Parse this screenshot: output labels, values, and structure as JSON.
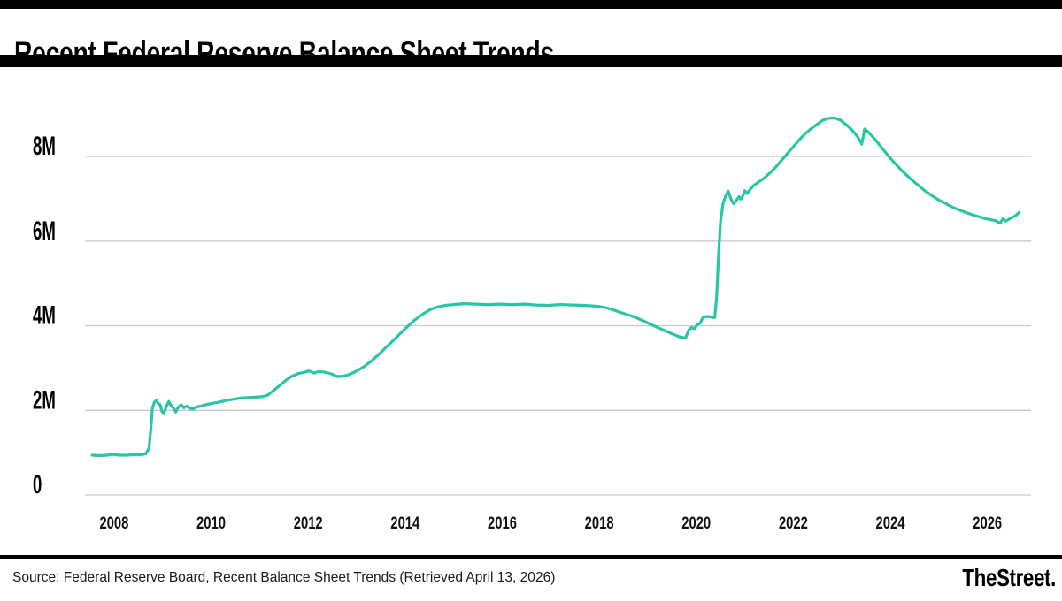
{
  "header": {
    "title": "Recent Federal Reserve Balance Sheet Trends"
  },
  "footer": {
    "source": "Source: Federal Reserve Board, Recent Balance Sheet Trends (Retrieved April 13, 2026)",
    "brand": "TheStreet."
  },
  "colors": {
    "line": "#28C6A4",
    "gridline": "#C9C9C9",
    "axis_text": "#111111",
    "bars": "#000000"
  },
  "chart_data": {
    "type": "line",
    "title": "Recent Federal Reserve Balance Sheet Trends",
    "xlabel": "",
    "ylabel": "",
    "grid": "horizontal",
    "legend": "none",
    "xlim": [
      2007.4,
      2026.9
    ],
    "ylim": [
      0,
      9.4
    ],
    "yticks": [
      {
        "v": 0,
        "label": "0"
      },
      {
        "v": 2,
        "label": "2M"
      },
      {
        "v": 4,
        "label": "4M"
      },
      {
        "v": 6,
        "label": "6M"
      },
      {
        "v": 8,
        "label": "8M"
      }
    ],
    "xticks": [
      {
        "v": 2008,
        "label": "2008"
      },
      {
        "v": 2010,
        "label": "2010"
      },
      {
        "v": 2012,
        "label": "2012"
      },
      {
        "v": 2014,
        "label": "2014"
      },
      {
        "v": 2016,
        "label": "2016"
      },
      {
        "v": 2018,
        "label": "2018"
      },
      {
        "v": 2020,
        "label": "2020"
      },
      {
        "v": 2022,
        "label": "2022"
      },
      {
        "v": 2024,
        "label": "2024"
      },
      {
        "v": 2026,
        "label": "2026"
      }
    ],
    "points": [
      [
        2007.55,
        0.94
      ],
      [
        2007.7,
        0.93
      ],
      [
        2007.85,
        0.94
      ],
      [
        2008.0,
        0.96
      ],
      [
        2008.1,
        0.94
      ],
      [
        2008.25,
        0.94
      ],
      [
        2008.4,
        0.95
      ],
      [
        2008.55,
        0.95
      ],
      [
        2008.65,
        0.97
      ],
      [
        2008.72,
        1.1
      ],
      [
        2008.76,
        1.6
      ],
      [
        2008.79,
        2.05
      ],
      [
        2008.83,
        2.19
      ],
      [
        2008.87,
        2.24
      ],
      [
        2008.91,
        2.16
      ],
      [
        2008.95,
        2.13
      ],
      [
        2008.99,
        1.96
      ],
      [
        2009.03,
        1.94
      ],
      [
        2009.08,
        2.1
      ],
      [
        2009.13,
        2.21
      ],
      [
        2009.18,
        2.1
      ],
      [
        2009.23,
        2.05
      ],
      [
        2009.27,
        1.96
      ],
      [
        2009.32,
        2.07
      ],
      [
        2009.38,
        2.13
      ],
      [
        2009.44,
        2.06
      ],
      [
        2009.5,
        2.1
      ],
      [
        2009.56,
        2.05
      ],
      [
        2009.63,
        2.03
      ],
      [
        2009.7,
        2.08
      ],
      [
        2009.78,
        2.1
      ],
      [
        2009.88,
        2.13
      ],
      [
        2010.0,
        2.16
      ],
      [
        2010.15,
        2.19
      ],
      [
        2010.3,
        2.23
      ],
      [
        2010.45,
        2.26
      ],
      [
        2010.6,
        2.29
      ],
      [
        2010.75,
        2.3
      ],
      [
        2010.9,
        2.31
      ],
      [
        2011.05,
        2.32
      ],
      [
        2011.17,
        2.36
      ],
      [
        2011.3,
        2.48
      ],
      [
        2011.43,
        2.6
      ],
      [
        2011.55,
        2.72
      ],
      [
        2011.67,
        2.81
      ],
      [
        2011.8,
        2.87
      ],
      [
        2011.92,
        2.9
      ],
      [
        2012.02,
        2.93
      ],
      [
        2012.12,
        2.88
      ],
      [
        2012.22,
        2.92
      ],
      [
        2012.35,
        2.9
      ],
      [
        2012.48,
        2.86
      ],
      [
        2012.6,
        2.8
      ],
      [
        2012.73,
        2.81
      ],
      [
        2012.86,
        2.85
      ],
      [
        2013.0,
        2.93
      ],
      [
        2013.15,
        3.03
      ],
      [
        2013.32,
        3.18
      ],
      [
        2013.5,
        3.37
      ],
      [
        2013.68,
        3.57
      ],
      [
        2013.86,
        3.77
      ],
      [
        2014.02,
        3.95
      ],
      [
        2014.18,
        4.12
      ],
      [
        2014.34,
        4.26
      ],
      [
        2014.5,
        4.37
      ],
      [
        2014.66,
        4.44
      ],
      [
        2014.83,
        4.48
      ],
      [
        2015.0,
        4.5
      ],
      [
        2015.2,
        4.52
      ],
      [
        2015.45,
        4.51
      ],
      [
        2015.7,
        4.5
      ],
      [
        2015.95,
        4.51
      ],
      [
        2016.2,
        4.5
      ],
      [
        2016.45,
        4.51
      ],
      [
        2016.7,
        4.49
      ],
      [
        2016.95,
        4.48
      ],
      [
        2017.2,
        4.5
      ],
      [
        2017.45,
        4.49
      ],
      [
        2017.7,
        4.48
      ],
      [
        2017.95,
        4.46
      ],
      [
        2018.12,
        4.43
      ],
      [
        2018.3,
        4.37
      ],
      [
        2018.5,
        4.29
      ],
      [
        2018.7,
        4.22
      ],
      [
        2018.9,
        4.12
      ],
      [
        2019.1,
        4.01
      ],
      [
        2019.3,
        3.91
      ],
      [
        2019.5,
        3.81
      ],
      [
        2019.65,
        3.74
      ],
      [
        2019.78,
        3.71
      ],
      [
        2019.84,
        3.89
      ],
      [
        2019.9,
        3.96
      ],
      [
        2019.96,
        3.93
      ],
      [
        2020.02,
        4.02
      ],
      [
        2020.08,
        4.06
      ],
      [
        2020.14,
        4.2
      ],
      [
        2020.22,
        4.22
      ],
      [
        2020.3,
        4.21
      ],
      [
        2020.38,
        4.19
      ],
      [
        2020.42,
        4.7
      ],
      [
        2020.46,
        5.7
      ],
      [
        2020.5,
        6.45
      ],
      [
        2020.55,
        6.88
      ],
      [
        2020.6,
        7.05
      ],
      [
        2020.66,
        7.18
      ],
      [
        2020.72,
        6.98
      ],
      [
        2020.77,
        6.88
      ],
      [
        2020.83,
        6.96
      ],
      [
        2020.88,
        7.05
      ],
      [
        2020.92,
        6.99
      ],
      [
        2020.96,
        7.07
      ],
      [
        2021.0,
        7.19
      ],
      [
        2021.05,
        7.12
      ],
      [
        2021.11,
        7.22
      ],
      [
        2021.18,
        7.31
      ],
      [
        2021.28,
        7.39
      ],
      [
        2021.4,
        7.49
      ],
      [
        2021.52,
        7.61
      ],
      [
        2021.64,
        7.75
      ],
      [
        2021.76,
        7.91
      ],
      [
        2021.88,
        8.07
      ],
      [
        2022.0,
        8.23
      ],
      [
        2022.12,
        8.39
      ],
      [
        2022.24,
        8.53
      ],
      [
        2022.36,
        8.65
      ],
      [
        2022.48,
        8.75
      ],
      [
        2022.6,
        8.85
      ],
      [
        2022.72,
        8.9
      ],
      [
        2022.85,
        8.91
      ],
      [
        2022.97,
        8.86
      ],
      [
        2023.1,
        8.74
      ],
      [
        2023.22,
        8.61
      ],
      [
        2023.33,
        8.46
      ],
      [
        2023.41,
        8.29
      ],
      [
        2023.47,
        8.65
      ],
      [
        2023.56,
        8.56
      ],
      [
        2023.68,
        8.41
      ],
      [
        2023.82,
        8.21
      ],
      [
        2023.96,
        8.01
      ],
      [
        2024.1,
        7.83
      ],
      [
        2024.25,
        7.65
      ],
      [
        2024.4,
        7.49
      ],
      [
        2024.55,
        7.34
      ],
      [
        2024.7,
        7.2
      ],
      [
        2024.85,
        7.08
      ],
      [
        2025.0,
        6.97
      ],
      [
        2025.15,
        6.88
      ],
      [
        2025.3,
        6.79
      ],
      [
        2025.45,
        6.72
      ],
      [
        2025.6,
        6.66
      ],
      [
        2025.75,
        6.6
      ],
      [
        2025.9,
        6.55
      ],
      [
        2026.05,
        6.51
      ],
      [
        2026.18,
        6.48
      ],
      [
        2026.26,
        6.42
      ],
      [
        2026.32,
        6.53
      ],
      [
        2026.38,
        6.47
      ],
      [
        2026.48,
        6.54
      ],
      [
        2026.58,
        6.6
      ],
      [
        2026.66,
        6.68
      ]
    ]
  }
}
